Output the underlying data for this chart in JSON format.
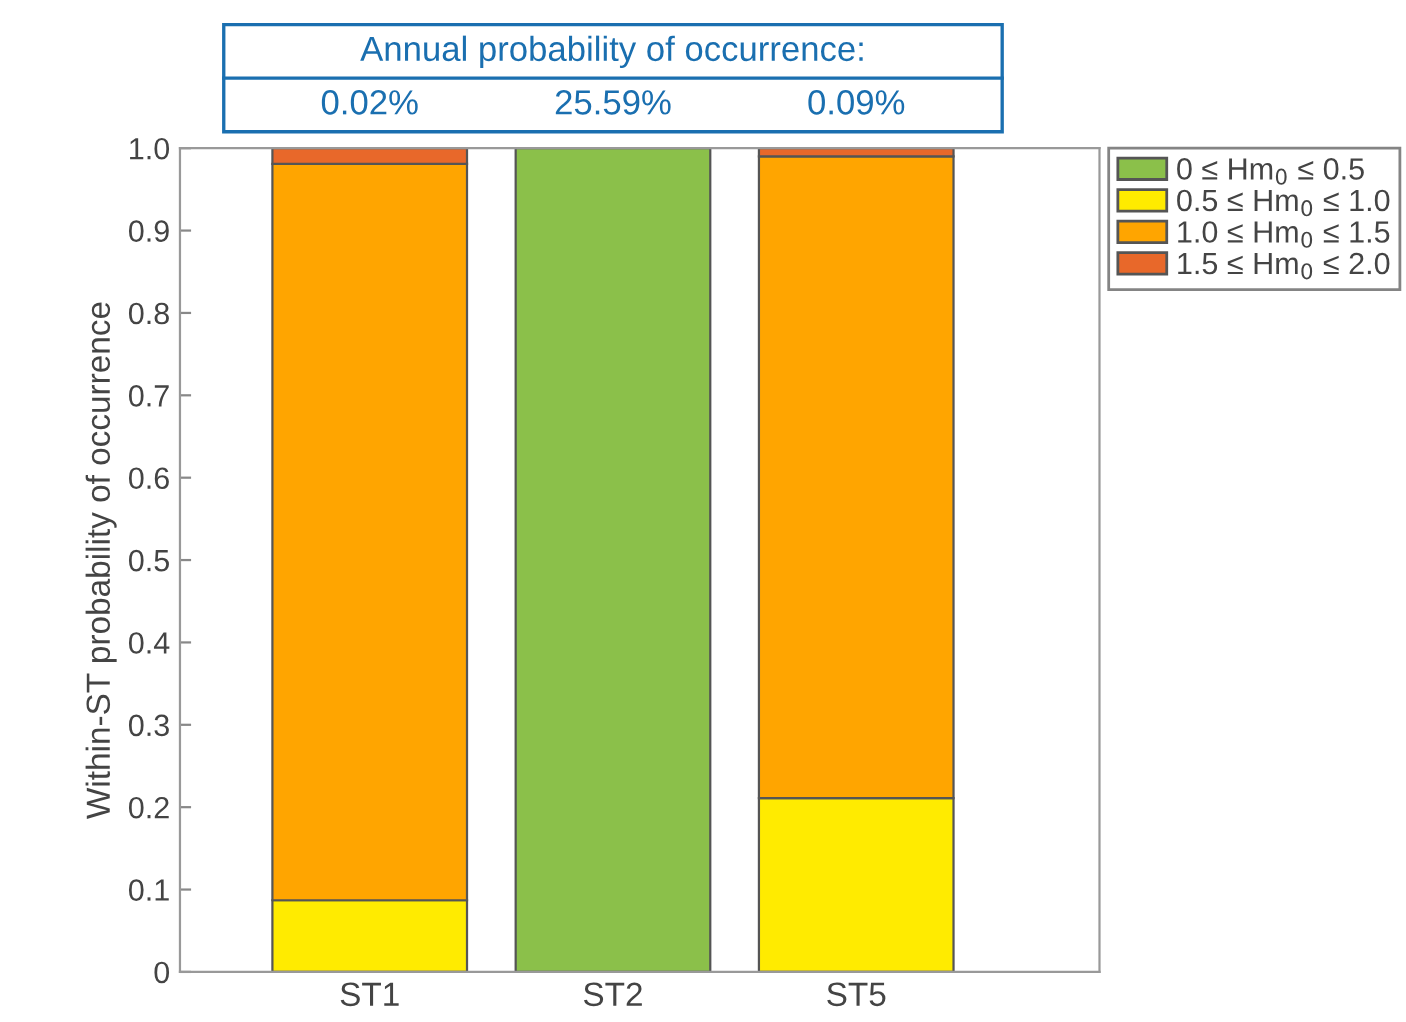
{
  "chart_data": {
    "type": "bar",
    "stacked": true,
    "title": "Annual probability of occurrence:",
    "ylabel": "Within-ST probability of occurrence",
    "categories": [
      "ST1",
      "ST2",
      "ST5"
    ],
    "series": [
      {
        "name": "0 ≤ Hm$_{0}$ ≤ 0.5",
        "color": "#8bc04a",
        "values": [
          0,
          1,
          0
        ]
      },
      {
        "name": "0.5 ≤ Hm$_{0}$ ≤ 1.0",
        "color": "#ffeb00",
        "values": [
          0.087,
          0,
          0.211
        ]
      },
      {
        "name": "1.0 ≤ Hm$_{0}$ ≤ 1.5",
        "color": "#ffa500",
        "values": [
          0.894,
          0,
          0.779
        ]
      },
      {
        "name": "1.5 ≤ Hm$_{0}$ ≤ 2.0",
        "color": "#e8682a",
        "values": [
          0.019,
          0,
          0.01
        ]
      }
    ],
    "annotations": [
      "0.02%",
      "25.59%",
      "0.09%"
    ],
    "ylim": [
      0,
      1
    ],
    "yticks": [
      0,
      0.1,
      0.2,
      0.3,
      0.4,
      0.5,
      0.6,
      0.7,
      0.8,
      0.9,
      {
        "value": 1,
        "label": "1.0"
      }
    ],
    "grid": false,
    "legend": "top right"
  }
}
